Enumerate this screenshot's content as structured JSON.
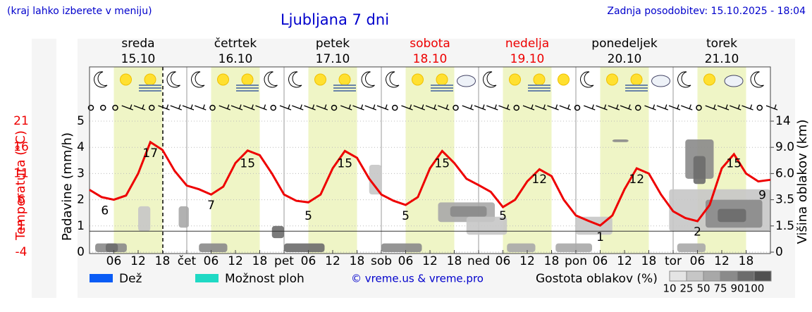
{
  "chart_data": {
    "type": "meteogram",
    "note": "(kraj lahko izberete v meniju)",
    "title": "Ljubljana 7 dni",
    "updated": "Zadnja posodobitev: 15.10.2025 - 18:04",
    "credit": "© vreme.us & vreme.pro",
    "days": [
      {
        "name": "sreda",
        "date": "15.10",
        "color": "#000000"
      },
      {
        "name": "četrtek",
        "date": "16.10",
        "color": "#000000"
      },
      {
        "name": "petek",
        "date": "17.10",
        "color": "#000000"
      },
      {
        "name": "sobota",
        "date": "18.10",
        "color": "#ee0000"
      },
      {
        "name": "nedelja",
        "date": "19.10",
        "color": "#ee0000"
      },
      {
        "name": "ponedeljek",
        "date": "20.10",
        "color": "#000000"
      },
      {
        "name": "torek",
        "date": "21.10",
        "color": "#000000"
      }
    ],
    "xlim": [
      0,
      168
    ],
    "xticks": [
      {
        "value": 6,
        "label": "06"
      },
      12,
      18,
      {
        "value": 24,
        "label": "čet"
      },
      {
        "value": 30,
        "label": "06"
      },
      {
        "value": 36,
        "label": "12"
      },
      {
        "value": 42,
        "label": "18"
      },
      {
        "value": 48,
        "label": "pet"
      },
      {
        "value": 54,
        "label": "06"
      },
      {
        "value": 60,
        "label": "12"
      },
      {
        "value": 66,
        "label": "18"
      },
      {
        "value": 72,
        "label": "sob"
      },
      {
        "value": 78,
        "label": "06"
      },
      {
        "value": 84,
        "label": "12"
      },
      {
        "value": 90,
        "label": "18"
      },
      {
        "value": 96,
        "label": "ned"
      },
      {
        "value": 102,
        "label": "06"
      },
      {
        "value": 108,
        "label": "12"
      },
      {
        "value": 114,
        "label": "18"
      },
      {
        "value": 120,
        "label": "pon"
      },
      {
        "value": 126,
        "label": "06"
      },
      {
        "value": 132,
        "label": "12"
      },
      {
        "value": 138,
        "label": "18"
      },
      {
        "value": 144,
        "label": "tor"
      },
      {
        "value": 150,
        "label": "06"
      },
      {
        "value": 156,
        "label": "12"
      },
      {
        "value": 162,
        "label": "18"
      }
    ],
    "ylabel": "Padavine (mm/h)",
    "ylim": [
      0,
      5
    ],
    "yticks": [
      0,
      1,
      2,
      3,
      4,
      5
    ],
    "y2label": "Višina oblakov (km)",
    "y2lim": [
      0,
      14
    ],
    "y2ticks": [
      0,
      1.5,
      3.5,
      {
        "value": 6,
        "label": "6.0"
      },
      {
        "value": 9,
        "label": "9.0"
      },
      14
    ],
    "temp_label": "Temperatura (°C)",
    "temp_lim": [
      -4,
      21
    ],
    "temp_ticks": [
      21,
      16,
      11,
      6,
      1,
      -4
    ],
    "temperature": {
      "color": "#ee0000",
      "x": [
        0,
        3,
        6,
        9,
        12,
        15,
        18,
        21,
        24,
        27,
        30,
        33,
        36,
        39,
        42,
        45,
        48,
        51,
        54,
        57,
        60,
        63,
        66,
        69,
        72,
        75,
        78,
        81,
        84,
        87,
        90,
        93,
        96,
        99,
        102,
        105,
        108,
        111,
        114,
        117,
        120,
        123,
        126,
        129,
        132,
        135,
        138,
        141,
        144,
        147,
        150,
        153,
        156,
        159,
        162,
        165,
        168
      ],
      "values": [
        7.9,
        6.5,
        6.0,
        6.8,
        11,
        17,
        15.5,
        11.5,
        8.7,
        8,
        7,
        8.5,
        13,
        15.4,
        14.5,
        11,
        7,
        5.8,
        5.5,
        7,
        12,
        15.3,
        14,
        10,
        7,
        5.8,
        5,
        6.5,
        12,
        15.3,
        13,
        10,
        8.8,
        7.5,
        4.6,
        6,
        9.5,
        11.8,
        10.5,
        6,
        3,
        2,
        1.1,
        3,
        8,
        12,
        11,
        7,
        3.8,
        2.5,
        1.9,
        5,
        12,
        14.7,
        11,
        9.5,
        9.8
      ]
    },
    "temp_labels": [
      {
        "x": 3.8,
        "value": 6
      },
      {
        "x": 15,
        "value": 17
      },
      {
        "x": 30,
        "value": 7
      },
      {
        "x": 39,
        "value": 15
      },
      {
        "x": 54,
        "value": 5
      },
      {
        "x": 63,
        "value": 15
      },
      {
        "x": 78,
        "value": 5
      },
      {
        "x": 87,
        "value": 15
      },
      {
        "x": 102,
        "value": 5
      },
      {
        "x": 111,
        "value": 12
      },
      {
        "x": 126,
        "value": 1
      },
      {
        "x": 135,
        "value": 12
      },
      {
        "x": 150,
        "value": 2
      },
      {
        "x": 159,
        "value": 15
      },
      {
        "x": 166,
        "value": 9
      }
    ],
    "clouds": [
      [
        1.4,
        9.2,
        0,
        0.5,
        75
      ],
      [
        4,
        7,
        0,
        0.5,
        90
      ],
      [
        12,
        15,
        1.2,
        3,
        25
      ],
      [
        22,
        24.5,
        1.4,
        3,
        50
      ],
      [
        27,
        34,
        0,
        0.5,
        75
      ],
      [
        45,
        48,
        0.8,
        1.5,
        90
      ],
      [
        48,
        58,
        0,
        0.5,
        90
      ],
      [
        69,
        72,
        4,
        7,
        25
      ],
      [
        72,
        82,
        0,
        0.5,
        75
      ],
      [
        86,
        100,
        1.8,
        3.3,
        50
      ],
      [
        89,
        98,
        2.2,
        3,
        75
      ],
      [
        93,
        103,
        1,
        2.2,
        25
      ],
      [
        103,
        110,
        0,
        0.5,
        50
      ],
      [
        115,
        124,
        0,
        0.5,
        50
      ],
      [
        120,
        129,
        1,
        2.2,
        25
      ],
      [
        129,
        133,
        10,
        10.5,
        75
      ],
      [
        143,
        168,
        1.2,
        4.5,
        25
      ],
      [
        147,
        154,
        5.5,
        10.5,
        75
      ],
      [
        149,
        152,
        5,
        8,
        90
      ],
      [
        152,
        166,
        1.4,
        3.5,
        75
      ],
      [
        155,
        162,
        1.8,
        2.8,
        90
      ],
      [
        145,
        152,
        0,
        0.5,
        50
      ]
    ],
    "density_label": "Gostota oblakov (%)",
    "density_levels": [
      10,
      25,
      50,
      75,
      90,
      100
    ],
    "density_colors": [
      "#e4e4e4",
      "#c6c6c6",
      "#a8a8a8",
      "#8a8a8a",
      "#6c6c6c",
      "#505050"
    ],
    "legend": [
      {
        "name": "Dež",
        "color": "#0a5cf5"
      },
      {
        "name": "Možnost ploh",
        "color": "#1fd9c4"
      }
    ]
  }
}
